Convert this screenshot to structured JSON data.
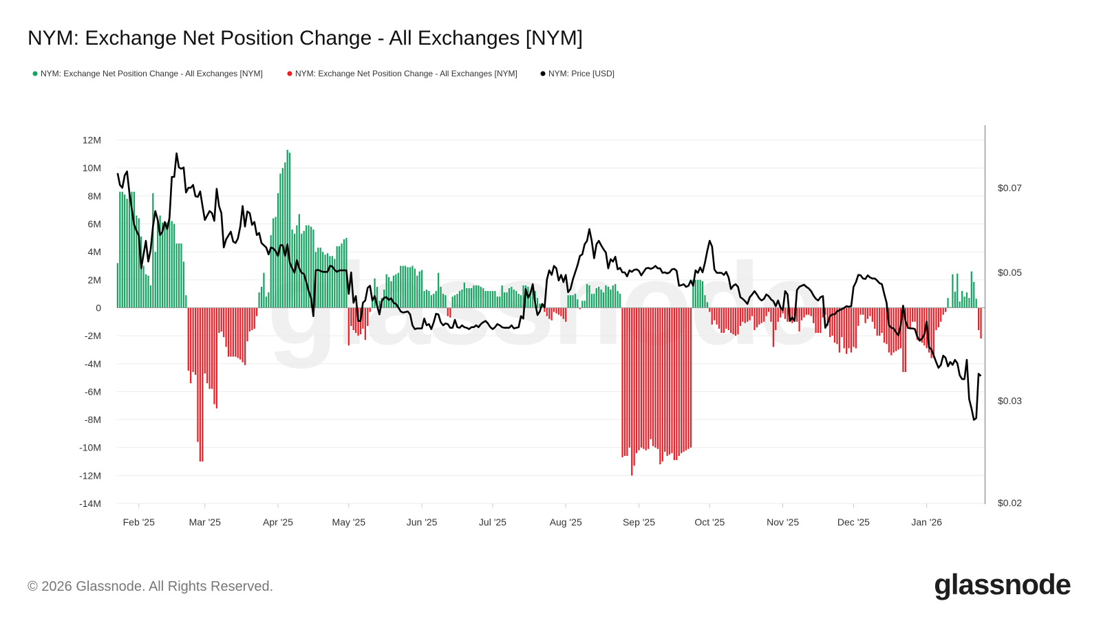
{
  "title": "NYM: Exchange Net Position Change - All Exchanges [NYM]",
  "legend": [
    {
      "label": "NYM: Exchange Net Position Change - All Exchanges [NYM]",
      "color": "#13a45f"
    },
    {
      "label": "NYM: Exchange Net Position Change - All Exchanges [NYM]",
      "color": "#ee1c24"
    },
    {
      "label": "NYM: Price [USD]",
      "color": "#000000"
    }
  ],
  "footer": {
    "copyright": "© 2026 Glassnode. All Rights Reserved.",
    "logo": "glassnode"
  },
  "watermark": "glassnode",
  "chart_data": {
    "type": "bar+line",
    "title": "NYM: Exchange Net Position Change - All Exchanges [NYM]",
    "xlim": [
      "2025-01-23",
      "2026-01-24"
    ],
    "x_interval": "1 day",
    "x_ticks": [
      {
        "label": "Feb '25",
        "date": "2025-02-01"
      },
      {
        "label": "Mar '25",
        "date": "2025-03-01"
      },
      {
        "label": "Apr '25",
        "date": "2025-04-01"
      },
      {
        "label": "May '25",
        "date": "2025-05-01"
      },
      {
        "label": "Jun '25",
        "date": "2025-06-01"
      },
      {
        "label": "Jul '25",
        "date": "2025-07-01"
      },
      {
        "label": "Aug '25",
        "date": "2025-08-01"
      },
      {
        "label": "Sep '25",
        "date": "2025-09-01"
      },
      {
        "label": "Oct '25",
        "date": "2025-10-01"
      },
      {
        "label": "Nov '25",
        "date": "2025-11-01"
      },
      {
        "label": "Dec '25",
        "date": "2025-12-01"
      },
      {
        "label": "Jan '26",
        "date": "2026-01-01"
      }
    ],
    "y_left": {
      "unit": "M NYM",
      "ylim": [
        -14,
        12
      ],
      "scale": "linear",
      "ticks": [
        {
          "v": 12,
          "label": "12M"
        },
        {
          "v": 10,
          "label": "10M"
        },
        {
          "v": 8,
          "label": "8M"
        },
        {
          "v": 6,
          "label": "6M"
        },
        {
          "v": 4,
          "label": "4M"
        },
        {
          "v": 2,
          "label": "2M"
        },
        {
          "v": 0,
          "label": "0"
        },
        {
          "v": -2,
          "label": "-2M"
        },
        {
          "v": -4,
          "label": "-4M"
        },
        {
          "v": -6,
          "label": "-6M"
        },
        {
          "v": -8,
          "label": "-8M"
        },
        {
          "v": -10,
          "label": "-10M"
        },
        {
          "v": -12,
          "label": "-12M"
        },
        {
          "v": -14,
          "label": "-14M"
        }
      ]
    },
    "y_right": {
      "unit": "USD",
      "ylim": [
        0.02,
        0.088
      ],
      "scale": "log",
      "ticks": [
        {
          "v": 0.07,
          "label": "$0.07"
        },
        {
          "v": 0.05,
          "label": "$0.05"
        },
        {
          "v": 0.03,
          "label": "$0.03"
        },
        {
          "v": 0.02,
          "label": "$0.02"
        }
      ]
    },
    "grid": true,
    "legend_position": "top-left",
    "colors": {
      "positive": "#13a45f",
      "negative": "#ee1c24",
      "price": "#000000"
    },
    "net_position_change_millions": [
      3.2,
      8.3,
      8.3,
      8.1,
      7.8,
      8.2,
      8.3,
      8.3,
      6.6,
      6.4,
      5.1,
      3.0,
      2.4,
      2.3,
      1.6,
      8.2,
      4.0,
      6.1,
      6.6,
      6.1,
      5.9,
      6.1,
      6.3,
      6.2,
      6.0,
      4.6,
      4.6,
      4.6,
      3.3,
      0.9,
      -4.5,
      -5.4,
      -4.6,
      -4.8,
      -9.6,
      -11.0,
      -11.0,
      -4.7,
      -5.4,
      -5.8,
      -5.8,
      -6.9,
      -7.2,
      -1.8,
      -1.7,
      -2.1,
      -2.8,
      -3.5,
      -3.5,
      -3.5,
      -3.5,
      -3.6,
      -3.7,
      -3.9,
      -4.1,
      -2.4,
      -1.7,
      -1.6,
      -1.5,
      -0.6,
      1.1,
      1.5,
      2.5,
      0.8,
      1.1,
      5.2,
      6.4,
      6.5,
      8.2,
      9.6,
      10.0,
      10.4,
      11.3,
      11.1,
      5.6,
      5.3,
      5.9,
      6.7,
      5.3,
      5.5,
      5.9,
      5.9,
      5.8,
      5.6,
      4.0,
      4.3,
      4.3,
      4.0,
      3.8,
      3.9,
      3.7,
      3.7,
      3.5,
      4.4,
      4.4,
      4.6,
      4.9,
      5.0,
      -2.7,
      -1.3,
      -1.6,
      -1.8,
      -2.0,
      -1.9,
      -1.5,
      -2.3,
      -1.3,
      -0.3,
      0.6,
      2.1,
      1.5,
      0.5,
      0.7,
      1.3,
      2.4,
      2.2,
      1.9,
      2.3,
      2.4,
      2.5,
      3.0,
      3.0,
      3.0,
      2.9,
      2.9,
      3.0,
      2.8,
      2.3,
      2.6,
      2.7,
      1.2,
      1.3,
      1.2,
      0.9,
      1.0,
      1.2,
      2.5,
      1.5,
      1.0,
      0.9,
      -0.6,
      -0.7,
      0.8,
      0.9,
      1.0,
      1.2,
      1.3,
      1.8,
      1.4,
      1.4,
      1.4,
      1.6,
      1.6,
      1.6,
      1.5,
      1.4,
      1.2,
      1.2,
      1.2,
      1.2,
      1.2,
      0.8,
      0.8,
      1.6,
      1.1,
      1.1,
      1.4,
      1.5,
      1.3,
      1.2,
      1.0,
      0.9,
      1.6,
      1.6,
      1.5,
      1.2,
      1.3,
      1.2,
      0.7,
      0.3,
      0.1,
      -0.3,
      -0.6,
      -0.8,
      -0.9,
      -0.3,
      -0.4,
      -0.5,
      -0.6,
      -0.8,
      -1.0,
      0.9,
      0.9,
      0.9,
      1.0,
      0.6,
      -0.1,
      0.5,
      0.5,
      1.7,
      1.6,
      1.0,
      1.0,
      1.4,
      1.5,
      1.3,
      1.1,
      1.6,
      1.5,
      1.3,
      1.6,
      1.7,
      1.2,
      1.0,
      -10.7,
      -10.6,
      -10.6,
      -10.0,
      -12.0,
      -11.3,
      -10.4,
      -10.2,
      -10.0,
      -10.1,
      -10.2,
      -10.1,
      -9.4,
      -9.9,
      -10.0,
      -10.1,
      -11.2,
      -11.0,
      -10.3,
      -10.6,
      -10.5,
      -10.4,
      -10.9,
      -10.9,
      -10.6,
      -10.4,
      -10.3,
      -10.2,
      -10.1,
      -10.0,
      2.0,
      2.0,
      2.0,
      2.0,
      1.9,
      0.9,
      0.4,
      -0.3,
      -1.2,
      -0.9,
      -1.2,
      -1.5,
      -1.8,
      -1.8,
      -1.5,
      -1.6,
      -1.8,
      -1.9,
      -2.0,
      -1.9,
      -1.3,
      -1.0,
      -1.1,
      -1.0,
      -0.9,
      -0.6,
      -1.6,
      -1.4,
      -1.2,
      -1.1,
      -1.0,
      -0.6,
      -0.3,
      -1.0,
      -2.8,
      -1.6,
      -1.0,
      -0.7,
      -0.4,
      -0.8,
      -1.0,
      -0.8,
      -1.1,
      -0.6,
      -1.0,
      -1.7,
      -0.9,
      -0.7,
      -0.5,
      -0.5,
      -0.6,
      -1.1,
      -1.8,
      -1.8,
      -1.8,
      -0.7,
      -0.5,
      -1.3,
      -2.1,
      -2.0,
      -2.5,
      -2.6,
      -3.2,
      -2.1,
      -2.9,
      -3.3,
      -2.9,
      -3.2,
      -2.8,
      -2.9,
      -1.3,
      -0.5,
      -0.5,
      -1.1,
      -0.8,
      -0.6,
      -1.0,
      -1.5,
      -2.0,
      -2.0,
      -1.8,
      -2.5,
      -2.6,
      -3.2,
      -3.4,
      -3.2,
      -3.1,
      -3.0,
      -2.9,
      -4.6,
      -4.6,
      -1.5,
      -1.5,
      -1.0,
      -1.0,
      -2.3,
      -2.3,
      -2.5,
      -2.7,
      -2.9,
      -3.2,
      -3.6,
      -3.6,
      -1.6,
      -1.4,
      -1.0,
      -0.5,
      -0.3,
      0.7,
      0.05,
      2.4,
      1.15,
      2.45,
      0.45,
      1.2,
      0.8,
      1.1,
      0.7,
      2.6,
      1.85,
      0.65,
      -1.6,
      -2.2
    ],
    "price_usd": [
      0.0742,
      0.0708,
      0.07,
      0.0735,
      0.0747,
      0.0687,
      0.0644,
      0.0604,
      0.059,
      0.0579,
      0.0508,
      0.0537,
      0.0567,
      0.0522,
      0.0547,
      0.06,
      0.0638,
      0.0616,
      0.058,
      0.0588,
      0.0611,
      0.0594,
      0.0621,
      0.0731,
      0.0731,
      0.0803,
      0.0759,
      0.0755,
      0.0759,
      0.0687,
      0.07,
      0.07,
      0.0708,
      0.0677,
      0.0675,
      0.069,
      0.0651,
      0.0616,
      0.0627,
      0.0638,
      0.0633,
      0.0614,
      0.0697,
      0.0651,
      0.0633,
      0.0552,
      0.057,
      0.0579,
      0.0588,
      0.0565,
      0.0562,
      0.0572,
      0.06,
      0.0651,
      0.06,
      0.0637,
      0.0633,
      0.0604,
      0.0611,
      0.058,
      0.0585,
      0.0562,
      0.0557,
      0.0552,
      0.0537,
      0.0552,
      0.055,
      0.0544,
      0.0534,
      0.0557,
      0.0557,
      0.0534,
      0.0559,
      0.052,
      0.0508,
      0.0499,
      0.0525,
      0.0508,
      0.0499,
      0.0497,
      0.0481,
      0.0464,
      0.0452,
      0.042,
      0.0504,
      0.0505,
      0.0503,
      0.0501,
      0.0501,
      0.0501,
      0.0513,
      0.0512,
      0.0505,
      0.0501,
      0.0504,
      0.0504,
      0.0504,
      0.0504,
      0.0459,
      0.05,
      0.0443,
      0.0455,
      0.0412,
      0.0412,
      0.0443,
      0.0447,
      0.047,
      0.0474,
      0.0447,
      0.0455,
      0.0438,
      0.0423,
      0.0446,
      0.0452,
      0.0453,
      0.0448,
      0.0451,
      0.0443,
      0.0441,
      0.0435,
      0.0428,
      0.0426,
      0.0427,
      0.0428,
      0.0423,
      0.0405,
      0.0399,
      0.04,
      0.04,
      0.04,
      0.0416,
      0.0405,
      0.0407,
      0.0399,
      0.041,
      0.0424,
      0.0423,
      0.041,
      0.0405,
      0.0408,
      0.0407,
      0.0401,
      0.0401,
      0.0414,
      0.0402,
      0.0401,
      0.0405,
      0.0402,
      0.0401,
      0.0399,
      0.0402,
      0.0402,
      0.0405,
      0.0402,
      0.0407,
      0.041,
      0.0412,
      0.0408,
      0.0402,
      0.0399,
      0.0402,
      0.0407,
      0.0405,
      0.0402,
      0.0401,
      0.0401,
      0.0401,
      0.0405,
      0.04,
      0.0401,
      0.0402,
      0.042,
      0.0416,
      0.0468,
      0.0452,
      0.046,
      0.0477,
      0.0443,
      0.0422,
      0.0428,
      0.0441,
      0.0435,
      0.0486,
      0.0504,
      0.0495,
      0.0513,
      0.0508,
      0.0484,
      0.0495,
      0.0481,
      0.0495,
      0.0462,
      0.0468,
      0.0486,
      0.05,
      0.0515,
      0.0534,
      0.0537,
      0.0559,
      0.0567,
      0.0594,
      0.0567,
      0.0529,
      0.0559,
      0.0567,
      0.0557,
      0.0548,
      0.0541,
      0.0508,
      0.0527,
      0.0522,
      0.0532,
      0.0506,
      0.0509,
      0.05,
      0.05,
      0.0492,
      0.0504,
      0.0501,
      0.0505,
      0.0506,
      0.0503,
      0.0494,
      0.0501,
      0.0508,
      0.0509,
      0.0507,
      0.0509,
      0.0513,
      0.0508,
      0.0508,
      0.0499,
      0.05,
      0.0498,
      0.05,
      0.0506,
      0.0507,
      0.0503,
      0.0474,
      0.0475,
      0.0477,
      0.0472,
      0.0474,
      0.0484,
      0.0474,
      0.0504,
      0.0499,
      0.051,
      0.05,
      0.052,
      0.0545,
      0.0567,
      0.0554,
      0.0506,
      0.0499,
      0.0499,
      0.0499,
      0.0495,
      0.0501,
      0.049,
      0.0468,
      0.0474,
      0.0477,
      0.0472,
      0.0453,
      0.045,
      0.0446,
      0.0441,
      0.0453,
      0.0458,
      0.0464,
      0.0458,
      0.0451,
      0.0447,
      0.045,
      0.0458,
      0.0455,
      0.0449,
      0.0446,
      0.0437,
      0.0447,
      0.0435,
      0.043,
      0.0464,
      0.0458,
      0.0412,
      0.0418,
      0.0412,
      0.0466,
      0.0472,
      0.0474,
      0.0476,
      0.0472,
      0.0469,
      0.0464,
      0.0456,
      0.045,
      0.0447,
      0.0453,
      0.0455,
      0.0401,
      0.0408,
      0.042,
      0.0423,
      0.0423,
      0.0428,
      0.043,
      0.0432,
      0.0434,
      0.0437,
      0.0436,
      0.0437,
      0.0472,
      0.0481,
      0.0495,
      0.0494,
      0.0488,
      0.0487,
      0.0494,
      0.049,
      0.0488,
      0.0488,
      0.0484,
      0.0479,
      0.0477,
      0.0459,
      0.0443,
      0.0405,
      0.0401,
      0.04,
      0.0394,
      0.0389,
      0.0405,
      0.0438,
      0.0412,
      0.0401,
      0.04,
      0.04,
      0.0399,
      0.0387,
      0.0381,
      0.0384,
      0.0391,
      0.0411,
      0.0371,
      0.0368,
      0.0359,
      0.035,
      0.0342,
      0.0346,
      0.0359,
      0.0356,
      0.0344,
      0.035,
      0.0346,
      0.0353,
      0.0348,
      0.0332,
      0.0327,
      0.0327,
      0.0353,
      0.0302,
      0.0291,
      0.0278,
      0.028,
      0.0334,
      0.0331
    ]
  }
}
